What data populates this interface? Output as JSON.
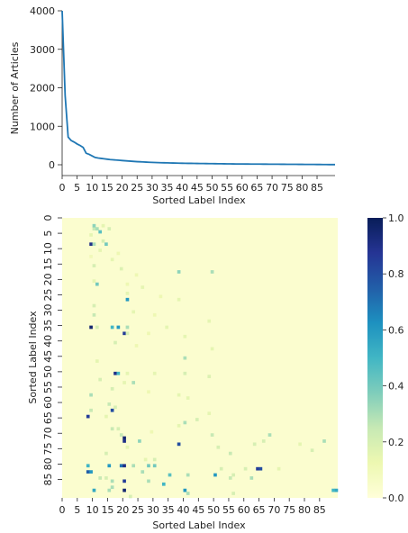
{
  "chart_data": [
    {
      "type": "line",
      "xlabel": "Sorted Label Index",
      "ylabel": "Number of Articles",
      "xlim": [
        0,
        91
      ],
      "ylim": [
        0,
        4000
      ],
      "xticks": [
        "0",
        "5",
        "10",
        "15",
        "20",
        "25",
        "30",
        "35",
        "40",
        "45",
        "50",
        "55",
        "60",
        "65",
        "70",
        "75",
        "80",
        "85"
      ],
      "yticks": [
        "0",
        "1000",
        "2000",
        "3000",
        "4000"
      ],
      "color": "#1f77b4",
      "x": [
        0,
        1,
        2,
        3,
        4,
        5,
        6,
        7,
        8,
        9,
        10,
        11,
        12,
        13,
        14,
        15,
        16,
        17,
        18,
        19,
        20,
        21,
        22,
        23,
        24,
        25,
        26,
        27,
        28,
        29,
        30,
        31,
        32,
        33,
        34,
        35,
        36,
        37,
        38,
        39,
        40,
        41,
        42,
        43,
        44,
        45,
        46,
        47,
        48,
        49,
        50,
        51,
        52,
        53,
        54,
        55,
        56,
        57,
        58,
        59,
        60,
        61,
        62,
        63,
        64,
        65,
        66,
        67,
        68,
        69,
        70,
        71,
        72,
        73,
        74,
        75,
        76,
        77,
        78,
        79,
        80,
        81,
        82,
        83,
        84,
        85,
        86,
        87,
        88,
        89,
        90,
        91
      ],
      "values": [
        4000,
        1800,
        720,
        630,
        590,
        540,
        500,
        450,
        300,
        270,
        230,
        190,
        175,
        165,
        155,
        145,
        135,
        128,
        122,
        116,
        110,
        104,
        98,
        92,
        86,
        81,
        77,
        73,
        69,
        65,
        62,
        59,
        56,
        53,
        51,
        49,
        47,
        45,
        43,
        41,
        39,
        38,
        37,
        36,
        35,
        34,
        33,
        32,
        31,
        30,
        29,
        28,
        27,
        26,
        25,
        24,
        23,
        22,
        21,
        20,
        20,
        19,
        19,
        18,
        18,
        17,
        17,
        16,
        16,
        15,
        15,
        14,
        14,
        13,
        13,
        12,
        12,
        11,
        11,
        10,
        10,
        9,
        9,
        8,
        8,
        7,
        7,
        6,
        6,
        5,
        5,
        4
      ]
    },
    {
      "type": "heatmap",
      "xlabel": "Sorted Label Index",
      "ylabel": "Sorted Label Index",
      "rows": 91,
      "cols": 91,
      "xticks": [
        "0",
        "5",
        "10",
        "15",
        "20",
        "25",
        "30",
        "35",
        "40",
        "45",
        "50",
        "55",
        "60",
        "65",
        "70",
        "75",
        "80",
        "85"
      ],
      "yticks": [
        "0",
        "5",
        "10",
        "15",
        "20",
        "25",
        "30",
        "35",
        "40",
        "45",
        "50",
        "55",
        "60",
        "65",
        "70",
        "75",
        "80",
        "85"
      ],
      "colormap": [
        "#ffffd9",
        "#edf8b1",
        "#c7e9b4",
        "#7fcdbb",
        "#41b6c4",
        "#1d91c0",
        "#225ea8",
        "#253494",
        "#081d58"
      ],
      "colorbar_ticks": [
        "0.0",
        "0.2",
        "0.4",
        "0.6",
        "0.8",
        "1.0"
      ],
      "vmin": 0,
      "vmax": 1,
      "background_value": 0.03,
      "cells": [
        [
          3,
          10,
          0.25
        ],
        [
          3,
          11,
          0.3
        ],
        [
          3,
          15,
          0.2
        ],
        [
          2,
          10,
          0.35
        ],
        [
          2,
          13,
          0.15
        ],
        [
          4,
          12,
          0.45
        ],
        [
          5,
          9,
          0.15
        ],
        [
          8,
          9,
          0.9
        ],
        [
          8,
          10,
          0.3
        ],
        [
          8,
          14,
          0.4
        ],
        [
          7,
          13,
          0.2
        ],
        [
          10,
          12,
          0.15
        ],
        [
          11,
          18,
          0.12
        ],
        [
          12,
          9,
          0.1
        ],
        [
          13,
          16,
          0.15
        ],
        [
          15,
          10,
          0.2
        ],
        [
          16,
          19,
          0.18
        ],
        [
          17,
          38,
          0.35
        ],
        [
          17,
          49,
          0.3
        ],
        [
          18,
          24,
          0.12
        ],
        [
          20,
          10,
          0.15
        ],
        [
          21,
          11,
          0.4
        ],
        [
          21,
          21,
          0.12
        ],
        [
          22,
          26,
          0.15
        ],
        [
          24,
          21,
          0.15
        ],
        [
          25,
          32,
          0.12
        ],
        [
          26,
          21,
          0.6
        ],
        [
          26,
          38,
          0.15
        ],
        [
          28,
          10,
          0.2
        ],
        [
          30,
          23,
          0.15
        ],
        [
          31,
          10,
          0.25
        ],
        [
          31,
          30,
          0.12
        ],
        [
          33,
          48,
          0.15
        ],
        [
          35,
          9,
          0.95
        ],
        [
          35,
          11,
          0.2
        ],
        [
          35,
          16,
          0.5
        ],
        [
          35,
          18,
          0.6
        ],
        [
          35,
          21,
          0.3
        ],
        [
          35,
          34,
          0.15
        ],
        [
          37,
          20,
          0.85
        ],
        [
          37,
          21,
          0.2
        ],
        [
          37,
          28,
          0.12
        ],
        [
          38,
          40,
          0.15
        ],
        [
          40,
          17,
          0.2
        ],
        [
          41,
          24,
          0.12
        ],
        [
          42,
          49,
          0.15
        ],
        [
          45,
          40,
          0.3
        ],
        [
          46,
          11,
          0.15
        ],
        [
          50,
          17,
          0.9
        ],
        [
          50,
          18,
          0.5
        ],
        [
          50,
          21,
          0.15
        ],
        [
          50,
          30,
          0.15
        ],
        [
          50,
          40,
          0.2
        ],
        [
          51,
          48,
          0.18
        ],
        [
          52,
          12,
          0.2
        ],
        [
          53,
          20,
          0.15
        ],
        [
          53,
          23,
          0.3
        ],
        [
          55,
          16,
          0.2
        ],
        [
          56,
          28,
          0.12
        ],
        [
          57,
          9,
          0.3
        ],
        [
          57,
          38,
          0.15
        ],
        [
          58,
          41,
          0.15
        ],
        [
          60,
          15,
          0.25
        ],
        [
          61,
          17,
          0.2
        ],
        [
          62,
          9,
          0.25
        ],
        [
          62,
          16,
          0.8
        ],
        [
          63,
          48,
          0.15
        ],
        [
          64,
          8,
          0.85
        ],
        [
          64,
          14,
          0.15
        ],
        [
          65,
          44,
          0.2
        ],
        [
          66,
          40,
          0.3
        ],
        [
          67,
          38,
          0.15
        ],
        [
          68,
          16,
          0.25
        ],
        [
          68,
          18,
          0.2
        ],
        [
          69,
          29,
          0.12
        ],
        [
          70,
          19,
          0.25
        ],
        [
          70,
          49,
          0.25
        ],
        [
          70,
          68,
          0.3
        ],
        [
          71,
          20,
          0.95
        ],
        [
          72,
          20,
          0.9
        ],
        [
          72,
          25,
          0.35
        ],
        [
          72,
          66,
          0.2
        ],
        [
          72,
          86,
          0.3
        ],
        [
          73,
          38,
          0.8
        ],
        [
          73,
          63,
          0.2
        ],
        [
          73,
          78,
          0.15
        ],
        [
          74,
          21,
          0.15
        ],
        [
          74,
          51,
          0.2
        ],
        [
          75,
          82,
          0.2
        ],
        [
          76,
          14,
          0.2
        ],
        [
          76,
          55,
          0.25
        ],
        [
          78,
          27,
          0.15
        ],
        [
          78,
          30,
          0.2
        ],
        [
          80,
          8,
          0.5
        ],
        [
          80,
          15,
          0.6
        ],
        [
          80,
          19,
          0.7
        ],
        [
          80,
          20,
          0.9
        ],
        [
          80,
          23,
          0.3
        ],
        [
          80,
          28,
          0.4
        ],
        [
          80,
          30,
          0.4
        ],
        [
          81,
          64,
          0.85
        ],
        [
          81,
          65,
          0.8
        ],
        [
          81,
          71,
          0.15
        ],
        [
          81,
          52,
          0.2
        ],
        [
          81,
          60,
          0.2
        ],
        [
          82,
          8,
          0.75
        ],
        [
          82,
          9,
          0.6
        ],
        [
          82,
          26,
          0.3
        ],
        [
          83,
          35,
          0.45
        ],
        [
          83,
          41,
          0.3
        ],
        [
          83,
          56,
          0.2
        ],
        [
          83,
          50,
          0.6
        ],
        [
          84,
          12,
          0.25
        ],
        [
          84,
          14,
          0.2
        ],
        [
          84,
          55,
          0.25
        ],
        [
          84,
          62,
          0.3
        ],
        [
          85,
          16,
          0.3
        ],
        [
          85,
          20,
          0.85
        ],
        [
          85,
          28,
          0.3
        ],
        [
          86,
          33,
          0.5
        ],
        [
          87,
          16,
          0.3
        ],
        [
          88,
          10,
          0.55
        ],
        [
          88,
          15,
          0.3
        ],
        [
          88,
          20,
          0.95
        ],
        [
          88,
          40,
          0.6
        ],
        [
          88,
          89,
          0.5
        ],
        [
          88,
          90,
          0.55
        ],
        [
          89,
          41,
          0.3
        ],
        [
          89,
          56,
          0.2
        ],
        [
          90,
          22,
          0.2
        ]
      ]
    }
  ]
}
